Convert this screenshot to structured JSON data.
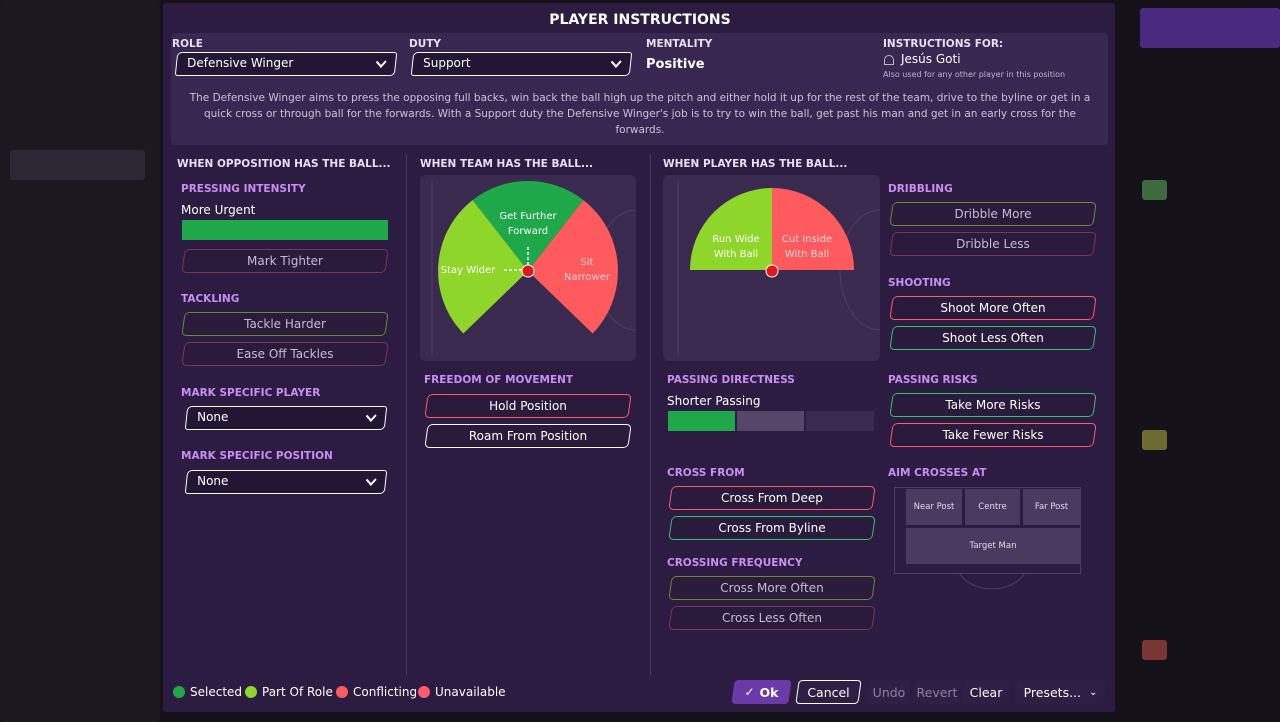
{
  "title": "PLAYER INSTRUCTIONS",
  "header": {
    "role_label": "ROLE",
    "role": "Defensive Winger",
    "duty_label": "DUTY",
    "duty": "Support",
    "mentality_label": "MENTALITY",
    "mentality": "Positive",
    "instructions_for_label": "INSTRUCTIONS FOR:",
    "player": "Jesús Goti",
    "also_used": "Also used for any other player in this position",
    "description": "The Defensive Winger aims to press the opposing full backs, win back the ball high up the pitch and either hold it up for the rest of the team, drive to the byline or get in a quick cross or through ball for the forwards. With a Support duty the Defensive Winger's job is to try to win the ball, get past his man and get in an early cross for the forwards."
  },
  "out_of_possession": {
    "heading": "WHEN OPPOSITION HAS THE BALL...",
    "pressing_intensity": {
      "label": "PRESSING INTENSITY",
      "value": "More Urgent",
      "option": "Mark Tighter"
    },
    "tackling": {
      "label": "TACKLING",
      "options": [
        "Tackle Harder",
        "Ease Off Tackles"
      ]
    },
    "mark_specific_player": {
      "label": "MARK SPECIFIC PLAYER",
      "value": "None"
    },
    "mark_specific_position": {
      "label": "MARK SPECIFIC POSITION",
      "value": "None"
    }
  },
  "in_possession": {
    "heading": "WHEN TEAM HAS THE BALL...",
    "pitch": {
      "forward": "Get Further Forward",
      "wider": "Stay Wider",
      "narrower": "Sit Narrower"
    },
    "freedom_of_movement": {
      "label": "FREEDOM OF MOVEMENT",
      "options": [
        "Hold Position",
        "Roam From Position"
      ]
    }
  },
  "with_ball": {
    "heading": "WHEN PLAYER HAS THE BALL...",
    "pitch": {
      "run_wide": "Run Wide With Ball",
      "cut_inside": "Cut Inside With Ball"
    },
    "passing_directness": {
      "label": "PASSING DIRECTNESS",
      "value": "Shorter Passing"
    },
    "cross_from": {
      "label": "CROSS FROM",
      "options": [
        "Cross From Deep",
        "Cross From Byline"
      ]
    },
    "crossing_frequency": {
      "label": "CROSSING FREQUENCY",
      "options": [
        "Cross More Often",
        "Cross Less Often"
      ]
    },
    "dribbling": {
      "label": "DRIBBLING",
      "options": [
        "Dribble More",
        "Dribble Less"
      ]
    },
    "shooting": {
      "label": "SHOOTING",
      "options": [
        "Shoot More Often",
        "Shoot Less Often"
      ]
    },
    "passing_risks": {
      "label": "PASSING RISKS",
      "options": [
        "Take More Risks",
        "Take Fewer Risks"
      ]
    },
    "aim_crosses_at": {
      "label": "AIM CROSSES AT",
      "targets": [
        "Near Post",
        "Centre",
        "Far Post",
        "Target Man"
      ]
    }
  },
  "legend": [
    "Selected",
    "Part Of Role",
    "Conflicting",
    "Unavailable"
  ],
  "buttons": [
    "Ok",
    "Cancel",
    "Undo",
    "Revert",
    "Clear",
    "Presets..."
  ]
}
